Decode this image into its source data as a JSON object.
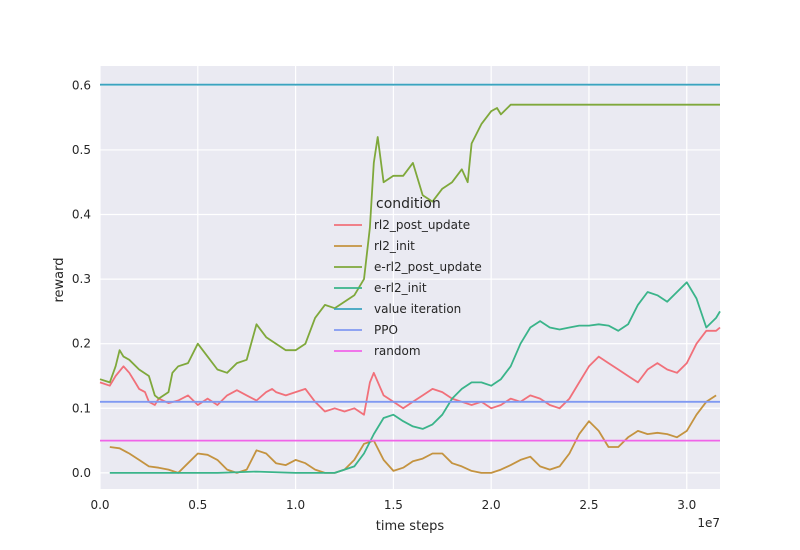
{
  "chart_data": {
    "type": "line",
    "title": "",
    "xlabel": "time steps",
    "ylabel": "reward",
    "x_offset_label": "1e7",
    "xlim": [
      0,
      3.17
    ],
    "ylim": [
      -0.025,
      0.63
    ],
    "x_unit_multiplier": 10000000,
    "xticks": [
      0.0,
      0.5,
      1.0,
      1.5,
      2.0,
      2.5,
      3.0
    ],
    "xtick_labels": [
      "0.0",
      "0.5",
      "1.0",
      "1.5",
      "2.0",
      "2.5",
      "3.0"
    ],
    "yticks": [
      0.0,
      0.1,
      0.2,
      0.3,
      0.4,
      0.5,
      0.6
    ],
    "ytick_labels": [
      "0.0",
      "0.1",
      "0.2",
      "0.3",
      "0.4",
      "0.5",
      "0.6"
    ],
    "grid": true,
    "background": "#eaeaf2",
    "legend": {
      "title": "condition",
      "placement": "center"
    },
    "series": [
      {
        "name": "rl2_post_update",
        "color": "#f1707a",
        "points": [
          [
            0.0,
            0.14
          ],
          [
            0.05,
            0.135
          ],
          [
            0.08,
            0.15
          ],
          [
            0.12,
            0.165
          ],
          [
            0.15,
            0.155
          ],
          [
            0.18,
            0.14
          ],
          [
            0.2,
            0.13
          ],
          [
            0.23,
            0.125
          ],
          [
            0.25,
            0.11
          ],
          [
            0.28,
            0.105
          ],
          [
            0.3,
            0.115
          ],
          [
            0.35,
            0.108
          ],
          [
            0.4,
            0.112
          ],
          [
            0.45,
            0.12
          ],
          [
            0.5,
            0.105
          ],
          [
            0.55,
            0.115
          ],
          [
            0.6,
            0.105
          ],
          [
            0.65,
            0.12
          ],
          [
            0.7,
            0.128
          ],
          [
            0.75,
            0.12
          ],
          [
            0.8,
            0.112
          ],
          [
            0.85,
            0.125
          ],
          [
            0.88,
            0.13
          ],
          [
            0.9,
            0.125
          ],
          [
            0.95,
            0.12
          ],
          [
            1.0,
            0.125
          ],
          [
            1.05,
            0.13
          ],
          [
            1.1,
            0.11
          ],
          [
            1.15,
            0.095
          ],
          [
            1.2,
            0.1
          ],
          [
            1.25,
            0.095
          ],
          [
            1.3,
            0.1
          ],
          [
            1.35,
            0.09
          ],
          [
            1.38,
            0.14
          ],
          [
            1.4,
            0.155
          ],
          [
            1.45,
            0.12
          ],
          [
            1.5,
            0.11
          ],
          [
            1.55,
            0.1
          ],
          [
            1.6,
            0.11
          ],
          [
            1.65,
            0.12
          ],
          [
            1.7,
            0.13
          ],
          [
            1.75,
            0.125
          ],
          [
            1.8,
            0.115
          ],
          [
            1.85,
            0.11
          ],
          [
            1.9,
            0.105
          ],
          [
            1.95,
            0.11
          ],
          [
            2.0,
            0.1
          ],
          [
            2.05,
            0.105
          ],
          [
            2.1,
            0.115
          ],
          [
            2.15,
            0.11
          ],
          [
            2.2,
            0.12
          ],
          [
            2.25,
            0.115
          ],
          [
            2.3,
            0.105
          ],
          [
            2.35,
            0.1
          ],
          [
            2.4,
            0.115
          ],
          [
            2.45,
            0.14
          ],
          [
            2.5,
            0.165
          ],
          [
            2.55,
            0.18
          ],
          [
            2.6,
            0.17
          ],
          [
            2.65,
            0.16
          ],
          [
            2.7,
            0.15
          ],
          [
            2.75,
            0.14
          ],
          [
            2.8,
            0.16
          ],
          [
            2.85,
            0.17
          ],
          [
            2.9,
            0.16
          ],
          [
            2.95,
            0.155
          ],
          [
            3.0,
            0.17
          ],
          [
            3.05,
            0.2
          ],
          [
            3.1,
            0.22
          ],
          [
            3.15,
            0.22
          ],
          [
            3.17,
            0.225
          ]
        ]
      },
      {
        "name": "rl2_init",
        "color": "#c49340",
        "points": [
          [
            0.05,
            0.04
          ],
          [
            0.1,
            0.038
          ],
          [
            0.15,
            0.03
          ],
          [
            0.2,
            0.02
          ],
          [
            0.25,
            0.01
          ],
          [
            0.3,
            0.008
          ],
          [
            0.35,
            0.005
          ],
          [
            0.4,
            0.0
          ],
          [
            0.45,
            0.015
          ],
          [
            0.5,
            0.03
          ],
          [
            0.55,
            0.028
          ],
          [
            0.6,
            0.02
          ],
          [
            0.65,
            0.005
          ],
          [
            0.7,
            0.0
          ],
          [
            0.75,
            0.005
          ],
          [
            0.8,
            0.035
          ],
          [
            0.85,
            0.03
          ],
          [
            0.9,
            0.015
          ],
          [
            0.95,
            0.012
          ],
          [
            1.0,
            0.02
          ],
          [
            1.05,
            0.015
          ],
          [
            1.1,
            0.005
          ],
          [
            1.15,
            0.0
          ],
          [
            1.2,
            0.0
          ],
          [
            1.25,
            0.005
          ],
          [
            1.3,
            0.02
          ],
          [
            1.35,
            0.045
          ],
          [
            1.4,
            0.05
          ],
          [
            1.45,
            0.02
          ],
          [
            1.5,
            0.003
          ],
          [
            1.55,
            0.008
          ],
          [
            1.6,
            0.018
          ],
          [
            1.65,
            0.022
          ],
          [
            1.7,
            0.03
          ],
          [
            1.75,
            0.03
          ],
          [
            1.8,
            0.015
          ],
          [
            1.85,
            0.01
          ],
          [
            1.9,
            0.003
          ],
          [
            1.95,
            0.0
          ],
          [
            2.0,
            0.0
          ],
          [
            2.05,
            0.005
          ],
          [
            2.1,
            0.012
          ],
          [
            2.15,
            0.02
          ],
          [
            2.2,
            0.025
          ],
          [
            2.25,
            0.01
          ],
          [
            2.3,
            0.005
          ],
          [
            2.35,
            0.01
          ],
          [
            2.4,
            0.03
          ],
          [
            2.45,
            0.06
          ],
          [
            2.5,
            0.08
          ],
          [
            2.55,
            0.065
          ],
          [
            2.6,
            0.04
          ],
          [
            2.65,
            0.04
          ],
          [
            2.7,
            0.055
          ],
          [
            2.75,
            0.065
          ],
          [
            2.8,
            0.06
          ],
          [
            2.85,
            0.062
          ],
          [
            2.9,
            0.06
          ],
          [
            2.95,
            0.055
          ],
          [
            3.0,
            0.065
          ],
          [
            3.05,
            0.09
          ],
          [
            3.1,
            0.11
          ],
          [
            3.15,
            0.12
          ]
        ]
      },
      {
        "name": "e-rl2_post_update",
        "color": "#7fa83b",
        "points": [
          [
            0.0,
            0.145
          ],
          [
            0.05,
            0.14
          ],
          [
            0.08,
            0.165
          ],
          [
            0.1,
            0.19
          ],
          [
            0.12,
            0.18
          ],
          [
            0.15,
            0.175
          ],
          [
            0.2,
            0.16
          ],
          [
            0.25,
            0.15
          ],
          [
            0.28,
            0.12
          ],
          [
            0.3,
            0.115
          ],
          [
            0.35,
            0.125
          ],
          [
            0.37,
            0.155
          ],
          [
            0.4,
            0.165
          ],
          [
            0.45,
            0.17
          ],
          [
            0.5,
            0.2
          ],
          [
            0.55,
            0.18
          ],
          [
            0.6,
            0.16
          ],
          [
            0.65,
            0.155
          ],
          [
            0.7,
            0.17
          ],
          [
            0.75,
            0.175
          ],
          [
            0.8,
            0.23
          ],
          [
            0.85,
            0.21
          ],
          [
            0.9,
            0.2
          ],
          [
            0.95,
            0.19
          ],
          [
            1.0,
            0.19
          ],
          [
            1.05,
            0.2
          ],
          [
            1.1,
            0.24
          ],
          [
            1.15,
            0.26
          ],
          [
            1.2,
            0.255
          ],
          [
            1.25,
            0.265
          ],
          [
            1.3,
            0.275
          ],
          [
            1.35,
            0.3
          ],
          [
            1.38,
            0.38
          ],
          [
            1.4,
            0.48
          ],
          [
            1.42,
            0.52
          ],
          [
            1.45,
            0.45
          ],
          [
            1.5,
            0.46
          ],
          [
            1.55,
            0.46
          ],
          [
            1.6,
            0.48
          ],
          [
            1.65,
            0.43
          ],
          [
            1.7,
            0.42
          ],
          [
            1.75,
            0.44
          ],
          [
            1.8,
            0.45
          ],
          [
            1.85,
            0.47
          ],
          [
            1.88,
            0.45
          ],
          [
            1.9,
            0.51
          ],
          [
            1.95,
            0.54
          ],
          [
            2.0,
            0.56
          ],
          [
            2.03,
            0.565
          ],
          [
            2.05,
            0.555
          ],
          [
            2.1,
            0.57
          ],
          [
            2.15,
            0.57
          ],
          [
            2.3,
            0.57
          ],
          [
            2.5,
            0.57
          ],
          [
            3.0,
            0.57
          ],
          [
            3.17,
            0.57
          ]
        ]
      },
      {
        "name": "e-rl2_init",
        "color": "#3ab48a",
        "points": [
          [
            0.05,
            0.0
          ],
          [
            0.3,
            0.0
          ],
          [
            0.6,
            0.0
          ],
          [
            0.8,
            0.002
          ],
          [
            1.0,
            0.0
          ],
          [
            1.2,
            0.0
          ],
          [
            1.25,
            0.005
          ],
          [
            1.3,
            0.01
          ],
          [
            1.35,
            0.03
          ],
          [
            1.4,
            0.06
          ],
          [
            1.45,
            0.085
          ],
          [
            1.5,
            0.09
          ],
          [
            1.55,
            0.08
          ],
          [
            1.6,
            0.072
          ],
          [
            1.65,
            0.068
          ],
          [
            1.7,
            0.075
          ],
          [
            1.75,
            0.09
          ],
          [
            1.8,
            0.115
          ],
          [
            1.85,
            0.13
          ],
          [
            1.9,
            0.14
          ],
          [
            1.95,
            0.14
          ],
          [
            2.0,
            0.135
          ],
          [
            2.05,
            0.145
          ],
          [
            2.1,
            0.165
          ],
          [
            2.15,
            0.2
          ],
          [
            2.2,
            0.225
          ],
          [
            2.25,
            0.235
          ],
          [
            2.3,
            0.225
          ],
          [
            2.35,
            0.222
          ],
          [
            2.4,
            0.225
          ],
          [
            2.45,
            0.228
          ],
          [
            2.5,
            0.228
          ],
          [
            2.55,
            0.23
          ],
          [
            2.6,
            0.228
          ],
          [
            2.65,
            0.22
          ],
          [
            2.7,
            0.23
          ],
          [
            2.75,
            0.26
          ],
          [
            2.8,
            0.28
          ],
          [
            2.85,
            0.275
          ],
          [
            2.9,
            0.265
          ],
          [
            2.95,
            0.28
          ],
          [
            3.0,
            0.295
          ],
          [
            3.05,
            0.27
          ],
          [
            3.1,
            0.225
          ],
          [
            3.15,
            0.24
          ],
          [
            3.17,
            0.25
          ]
        ]
      },
      {
        "name": "value iteration",
        "color": "#3ba3bf",
        "points": [
          [
            0.0,
            0.601
          ],
          [
            3.17,
            0.601
          ]
        ]
      },
      {
        "name": "PPO",
        "color": "#8099f2",
        "points": [
          [
            0.0,
            0.11
          ],
          [
            3.17,
            0.11
          ]
        ]
      },
      {
        "name": "random",
        "color": "#f064e8",
        "points": [
          [
            0.0,
            0.05
          ],
          [
            3.17,
            0.05
          ]
        ]
      }
    ]
  }
}
